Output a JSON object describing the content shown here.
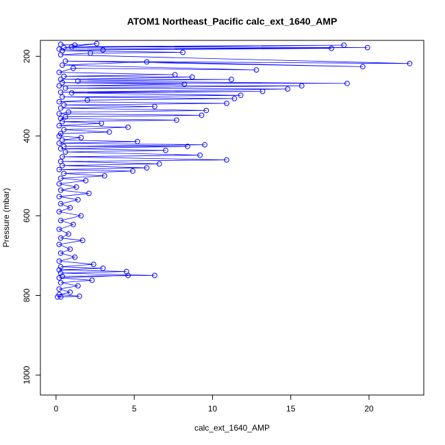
{
  "chart_data": {
    "type": "scatter",
    "title": "ATOM1 Northeast_Pacific calc_ext_1640_AMP",
    "xlabel": "calc_ext_1640_AMP",
    "ylabel": "Pressure (mbar)",
    "xlim": [
      -1,
      23.5
    ],
    "ylim": [
      1050,
      160
    ],
    "y_inverted": true,
    "x_ticks": [
      0,
      5,
      10,
      15,
      20
    ],
    "y_ticks": [
      200,
      400,
      600,
      800,
      1000
    ],
    "grid": false,
    "legend": "none",
    "series": [
      {
        "color": "#0000ff",
        "marker": "open-circle",
        "line": true,
        "points": [
          [
            0.3,
            170
          ],
          [
            1.2,
            172
          ],
          [
            2.6,
            168
          ],
          [
            0.5,
            178
          ],
          [
            18.4,
            172
          ],
          [
            1.0,
            176
          ],
          [
            19.9,
            178
          ],
          [
            0.2,
            182
          ],
          [
            17.6,
            180
          ],
          [
            3.0,
            184
          ],
          [
            0.4,
            186
          ],
          [
            8.1,
            190
          ],
          [
            2.2,
            192
          ],
          [
            0.3,
            196
          ],
          [
            22.6,
            218
          ],
          [
            0.6,
            212
          ],
          [
            19.6,
            226
          ],
          [
            5.8,
            214
          ],
          [
            0.4,
            222
          ],
          [
            12.8,
            234
          ],
          [
            1.1,
            230
          ],
          [
            0.2,
            240
          ],
          [
            7.6,
            246
          ],
          [
            0.5,
            250
          ],
          [
            8.7,
            252
          ],
          [
            0.3,
            258
          ],
          [
            11.2,
            258
          ],
          [
            1.4,
            262
          ],
          [
            18.6,
            268
          ],
          [
            0.4,
            266
          ],
          [
            8.2,
            270
          ],
          [
            0.2,
            274
          ],
          [
            15.7,
            274
          ],
          [
            0.6,
            280
          ],
          [
            14.8,
            282
          ],
          [
            0.3,
            290
          ],
          [
            13.2,
            288
          ],
          [
            1.0,
            292
          ],
          [
            11.8,
            298
          ],
          [
            0.4,
            302
          ],
          [
            11.4,
            306
          ],
          [
            2.0,
            310
          ],
          [
            0.2,
            314
          ],
          [
            10.9,
            318
          ],
          [
            0.5,
            322
          ],
          [
            6.3,
            326
          ],
          [
            0.3,
            330
          ],
          [
            9.6,
            336
          ],
          [
            0.8,
            340
          ],
          [
            0.2,
            344
          ],
          [
            9.3,
            348
          ],
          [
            0.6,
            352
          ],
          [
            0.3,
            356
          ],
          [
            7.7,
            360
          ],
          [
            0.4,
            364
          ],
          [
            2.9,
            368
          ],
          [
            0.2,
            374
          ],
          [
            4.6,
            378
          ],
          [
            0.5,
            384
          ],
          [
            3.4,
            390
          ],
          [
            0.3,
            394
          ],
          [
            0.2,
            400
          ],
          [
            1.6,
            404
          ],
          [
            0.4,
            410
          ],
          [
            5.2,
            414
          ],
          [
            0.2,
            418
          ],
          [
            9.5,
            422
          ],
          [
            0.5,
            426
          ],
          [
            8.4,
            426
          ],
          [
            0.3,
            432
          ],
          [
            7.0,
            436
          ],
          [
            0.6,
            440
          ],
          [
            9.2,
            448
          ],
          [
            0.4,
            452
          ],
          [
            10.9,
            460
          ],
          [
            0.3,
            464
          ],
          [
            6.6,
            470
          ],
          [
            0.4,
            474
          ],
          [
            5.8,
            480
          ],
          [
            0.2,
            484
          ],
          [
            4.9,
            488
          ],
          [
            0.5,
            494
          ],
          [
            3.1,
            500
          ],
          [
            0.3,
            506
          ],
          [
            1.9,
            512
          ],
          [
            0.2,
            520
          ],
          [
            1.3,
            528
          ],
          [
            0.3,
            536
          ],
          [
            2.1,
            544
          ],
          [
            0.2,
            552
          ],
          [
            1.4,
            560
          ],
          [
            0.3,
            570
          ],
          [
            0.9,
            580
          ],
          [
            0.2,
            590
          ],
          [
            1.6,
            600
          ],
          [
            0.3,
            612
          ],
          [
            1.1,
            622
          ],
          [
            0.2,
            634
          ],
          [
            0.8,
            646
          ],
          [
            0.3,
            656
          ],
          [
            1.7,
            662
          ],
          [
            0.2,
            672
          ],
          [
            0.9,
            684
          ],
          [
            0.3,
            694
          ],
          [
            1.2,
            704
          ],
          [
            0.2,
            714
          ],
          [
            2.4,
            722
          ],
          [
            0.3,
            728
          ],
          [
            3.0,
            732
          ],
          [
            0.2,
            736
          ],
          [
            4.5,
            740
          ],
          [
            0.3,
            744
          ],
          [
            6.3,
            750
          ],
          [
            0.4,
            752
          ],
          [
            4.6,
            750
          ],
          [
            0.2,
            756
          ],
          [
            2.3,
            762
          ],
          [
            0.3,
            768
          ],
          [
            1.4,
            776
          ],
          [
            0.2,
            784
          ],
          [
            0.9,
            792
          ],
          [
            0.2,
            798
          ],
          [
            1.5,
            802
          ],
          [
            0.3,
            804
          ],
          [
            0.1,
            804
          ]
        ]
      }
    ]
  }
}
